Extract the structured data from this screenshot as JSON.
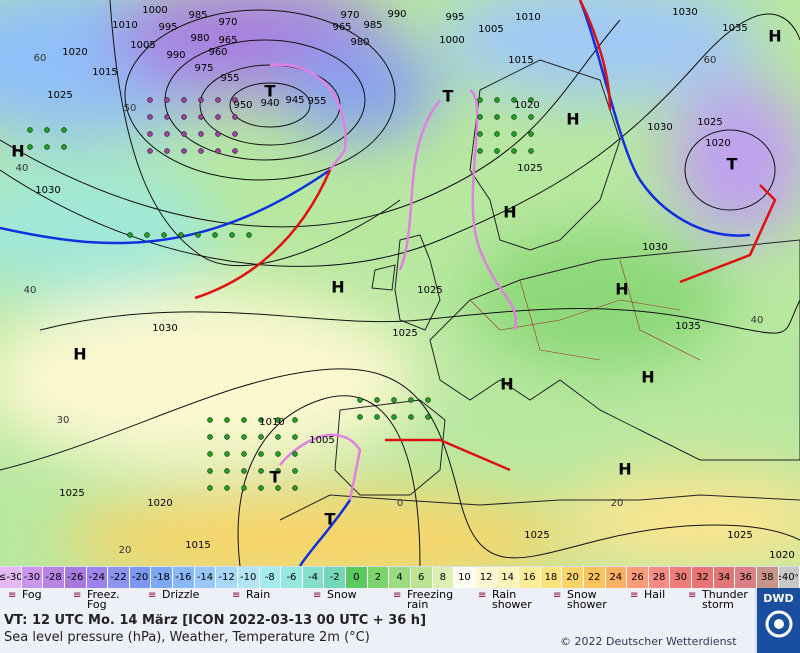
{
  "map": {
    "isobar_labels": [
      "1000",
      "1010",
      "995",
      "985",
      "970",
      "1005",
      "1020",
      "980",
      "965",
      "990",
      "975",
      "955",
      "1015",
      "960",
      "1025",
      "950",
      "940",
      "945",
      "955",
      "970",
      "965",
      "985",
      "990",
      "980",
      "995",
      "1005",
      "1010",
      "1000",
      "1015",
      "1020",
      "1030",
      "1035",
      "1025",
      "1030",
      "1020",
      "1030",
      "1030",
      "1030",
      "1025",
      "1025",
      "1035",
      "1010",
      "1005",
      "1025",
      "1020",
      "1015",
      "1025",
      "1025",
      "1020",
      "1025"
    ],
    "latitude_labels": [
      "60",
      "50",
      "40",
      "40",
      "30",
      "20",
      "60",
      "40",
      "20",
      "0"
    ],
    "pressure_centers": [
      "H",
      "H",
      "H",
      "H",
      "H",
      "H",
      "H",
      "H",
      "H",
      "H",
      "T",
      "T",
      "T",
      "T",
      "T"
    ]
  },
  "temperature_scale": {
    "labels": [
      "≤-30",
      "-30",
      "-28",
      "-26",
      "-24",
      "-22",
      "-20",
      "-18",
      "-16",
      "-14",
      "-12",
      "-10",
      "-8",
      "-6",
      "-4",
      "-2",
      "0",
      "2",
      "4",
      "6",
      "8",
      "10",
      "12",
      "14",
      "16",
      "18",
      "20",
      "22",
      "24",
      "26",
      "28",
      "30",
      "32",
      "34",
      "36",
      "38",
      "≥40"
    ],
    "colors": [
      "#e4b8f4",
      "#cc94ec",
      "#b884e4",
      "#a878dc",
      "#9c84ec",
      "#8c94f0",
      "#7c98f0",
      "#7ca8f4",
      "#88b8f8",
      "#98c8f8",
      "#a8d8f8",
      "#b4e4f8",
      "#a4ecf0",
      "#94e8e0",
      "#84e0cc",
      "#74d8b8",
      "#5cc860",
      "#7cd46c",
      "#9cdc80",
      "#bce494",
      "#dcf0b4",
      "#fcfcf0",
      "#fcf8d4",
      "#fcf4b8",
      "#fcec98",
      "#fce47c",
      "#fcd468",
      "#fcc45c",
      "#fcb064",
      "#fc9c78",
      "#f88c84",
      "#f07c7c",
      "#e87474",
      "#e07878",
      "#d88084",
      "#c89488",
      "#c8c8c8"
    ],
    "unit": "°C"
  },
  "legend": [
    "Fog",
    "Freez. Fog",
    "Drizzle",
    "Rain",
    "Snow",
    "Freezing rain",
    "Rain shower",
    "Snow shower",
    "Hail",
    "Thunder storm"
  ],
  "footer": {
    "valid_time": "VT: 12 UTC Mo.  14 März [ICON 2022-03-13  00 UTC + 36 h]",
    "description": "Sea level pressure (hPa), Weather, Temperature 2m (°C)",
    "copyright": "© 2022 Deutscher Wetterdienst",
    "logo": "DWD"
  }
}
